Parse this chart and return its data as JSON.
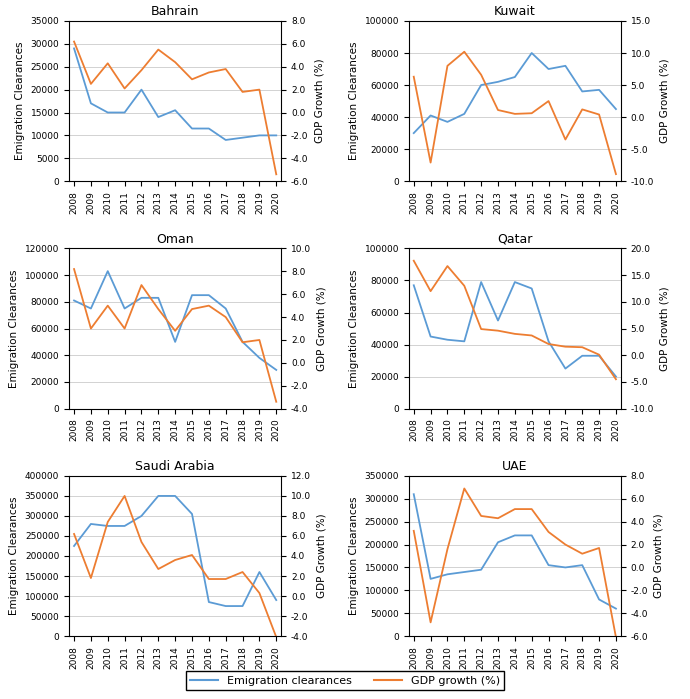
{
  "years": [
    2008,
    2009,
    2010,
    2011,
    2012,
    2013,
    2014,
    2015,
    2016,
    2017,
    2018,
    2019,
    2020
  ],
  "emigration": {
    "Bahrain": [
      29000,
      17000,
      15000,
      15000,
      20000,
      14000,
      15500,
      11500,
      11500,
      9000,
      9500,
      10000,
      10000
    ],
    "Kuwait": [
      30000,
      41000,
      37000,
      42000,
      60000,
      62000,
      65000,
      80000,
      70000,
      72000,
      56000,
      57000,
      45000
    ],
    "Oman": [
      81000,
      75000,
      103000,
      75000,
      83000,
      83000,
      50000,
      85000,
      85000,
      75000,
      50000,
      38000,
      29000
    ],
    "Qatar": [
      77000,
      45000,
      43000,
      42000,
      79000,
      55000,
      79000,
      75000,
      42000,
      25000,
      33000,
      33000,
      20000
    ],
    "Saudi Arabia": [
      225000,
      280000,
      275000,
      275000,
      300000,
      350000,
      350000,
      305000,
      85000,
      75000,
      75000,
      160000,
      90000
    ],
    "UAE": [
      310000,
      125000,
      135000,
      140000,
      145000,
      205000,
      220000,
      220000,
      155000,
      150000,
      155000,
      80000,
      60000
    ]
  },
  "gdp_growth": {
    "Bahrain": [
      6.2,
      2.5,
      4.3,
      2.1,
      3.7,
      5.5,
      4.4,
      2.9,
      3.5,
      3.8,
      1.8,
      2.0,
      -5.4
    ],
    "Kuwait": [
      6.3,
      -7.1,
      8.0,
      10.2,
      6.6,
      1.1,
      0.5,
      0.6,
      2.5,
      -3.5,
      1.2,
      0.4,
      -8.9
    ],
    "Oman": [
      8.2,
      3.0,
      5.0,
      3.0,
      6.8,
      4.7,
      2.8,
      4.7,
      5.0,
      4.0,
      1.8,
      2.0,
      -3.4
    ],
    "Qatar": [
      17.7,
      12.0,
      16.7,
      13.0,
      4.9,
      4.6,
      4.0,
      3.7,
      2.1,
      1.6,
      1.5,
      0.1,
      -4.5
    ],
    "Saudi Arabia": [
      6.2,
      1.8,
      7.4,
      10.0,
      5.4,
      2.7,
      3.6,
      4.1,
      1.7,
      1.7,
      2.4,
      0.3,
      -4.1
    ],
    "UAE": [
      3.2,
      -4.8,
      1.6,
      6.9,
      4.5,
      4.3,
      5.1,
      5.1,
      3.1,
      2.0,
      1.2,
      1.7,
      -6.1
    ]
  },
  "ylim_left": {
    "Bahrain": [
      0,
      35000
    ],
    "Kuwait": [
      0,
      100000
    ],
    "Oman": [
      0,
      120000
    ],
    "Qatar": [
      0,
      100000
    ],
    "Saudi Arabia": [
      0,
      400000
    ],
    "UAE": [
      0,
      350000
    ]
  },
  "ylim_right": {
    "Bahrain": [
      -6.0,
      8.0
    ],
    "Kuwait": [
      -10.0,
      15.0
    ],
    "Oman": [
      -4.0,
      10.0
    ],
    "Qatar": [
      -10.0,
      20.0
    ],
    "Saudi Arabia": [
      -4.0,
      12.0
    ],
    "UAE": [
      -6.0,
      8.0
    ]
  },
  "yticks_left": {
    "Bahrain": [
      0,
      5000,
      10000,
      15000,
      20000,
      25000,
      30000,
      35000
    ],
    "Kuwait": [
      0,
      20000,
      40000,
      60000,
      80000,
      100000
    ],
    "Oman": [
      0,
      20000,
      40000,
      60000,
      80000,
      100000,
      120000
    ],
    "Qatar": [
      0,
      20000,
      40000,
      60000,
      80000,
      100000
    ],
    "Saudi Arabia": [
      0,
      50000,
      100000,
      150000,
      200000,
      250000,
      300000,
      350000,
      400000
    ],
    "UAE": [
      0,
      50000,
      100000,
      150000,
      200000,
      250000,
      300000,
      350000
    ]
  },
  "yticks_right": {
    "Bahrain": [
      -6.0,
      -4.0,
      -2.0,
      0.0,
      2.0,
      4.0,
      6.0,
      8.0
    ],
    "Kuwait": [
      -10.0,
      -5.0,
      0.0,
      5.0,
      10.0,
      15.0
    ],
    "Oman": [
      -4.0,
      -2.0,
      0.0,
      2.0,
      4.0,
      6.0,
      8.0,
      10.0
    ],
    "Qatar": [
      -10.0,
      -5.0,
      0.0,
      5.0,
      10.0,
      15.0,
      20.0
    ],
    "Saudi Arabia": [
      -4.0,
      -2.0,
      0.0,
      2.0,
      4.0,
      6.0,
      8.0,
      10.0,
      12.0
    ],
    "UAE": [
      -6.0,
      -4.0,
      -2.0,
      0.0,
      2.0,
      4.0,
      6.0,
      8.0
    ]
  },
  "line_color_emigration": "#5B9BD5",
  "line_color_gdp": "#ED7D31",
  "legend_labels": [
    "Emigration clearances",
    "GDP growth (%)"
  ],
  "layout": [
    [
      "Bahrain",
      "Kuwait"
    ],
    [
      "Oman",
      "Qatar"
    ],
    [
      "Saudi Arabia",
      "UAE"
    ]
  ]
}
